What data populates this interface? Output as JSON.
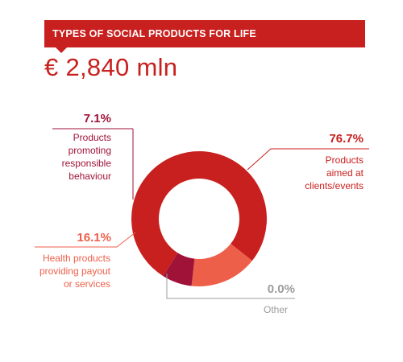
{
  "header": {
    "title": "TYPES OF SOCIAL PRODUCTS FOR LIFE",
    "total": "€ 2,840 mln"
  },
  "colors": {
    "accent": "#c8201e",
    "dark_red": "#a01238",
    "salmon": "#ee5f4a",
    "grey": "#9c9c9c"
  },
  "chart_data": {
    "type": "pie",
    "donut": true,
    "title": "TYPES OF SOCIAL PRODUCTS FOR LIFE",
    "total_label": "€ 2,840 mln",
    "slices": [
      {
        "value_label": "76.7%",
        "value": 76.7,
        "label_lines": [
          "Products",
          "aimed at",
          "clients/events"
        ],
        "color": "#c8201e"
      },
      {
        "value_label": "16.1%",
        "value": 16.1,
        "label_lines": [
          "Health products",
          "providing payout",
          "or services"
        ],
        "color": "#ee5f4a"
      },
      {
        "value_label": "7.1%",
        "value": 7.1,
        "label_lines": [
          "Products",
          "promoting",
          "responsible",
          "behaviour"
        ],
        "color": "#a01238"
      },
      {
        "value_label": "0.0%",
        "value": 0.0,
        "label_lines": [
          "Other"
        ],
        "color": "#9c9c9c"
      }
    ]
  }
}
